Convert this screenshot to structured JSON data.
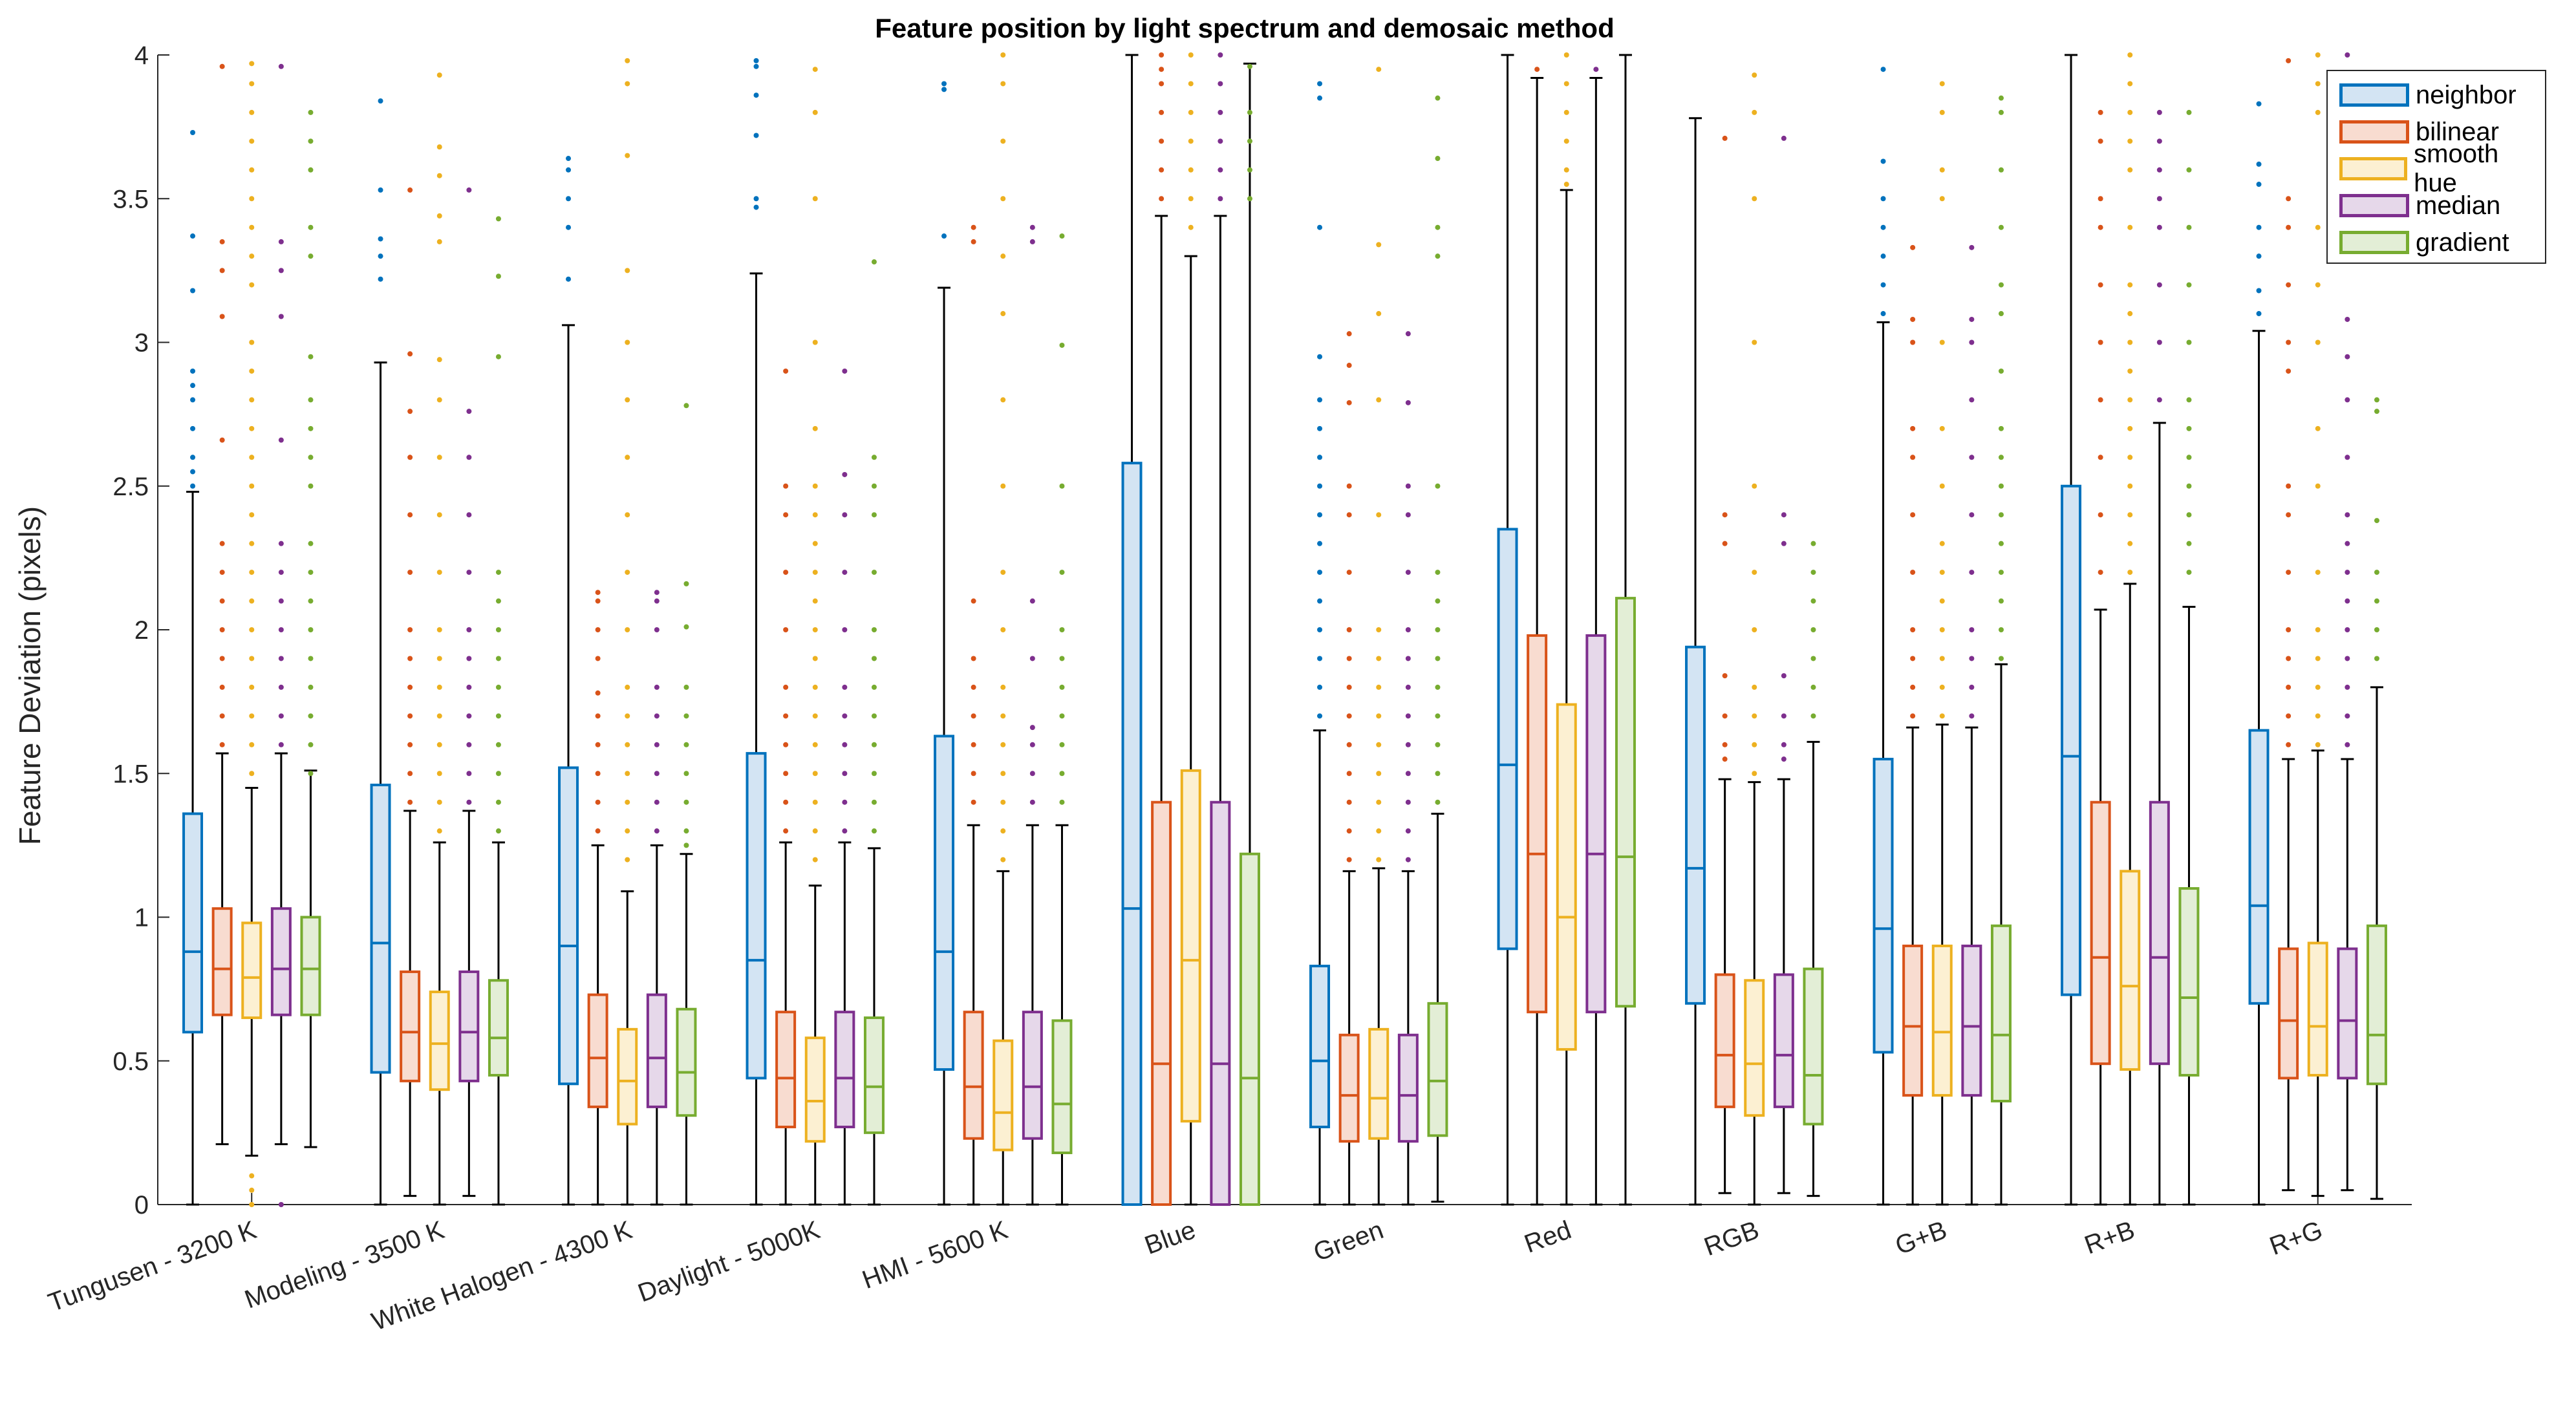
{
  "chart_data": {
    "type": "box",
    "title": "Feature position by light spectrum and demosaic method",
    "xlabel": "",
    "ylabel": "Feature Deviation (pixels)",
    "ylim": [
      0,
      4
    ],
    "yticks": [
      "0",
      "0.5",
      "1",
      "1.5",
      "2",
      "2.5",
      "3",
      "3.5",
      "4"
    ],
    "legend_position": "top-right",
    "categories": [
      "Tungusen - 3200 K",
      "Modeling - 3500 K",
      "White Halogen - 4300 K",
      "Daylight  - 5000K",
      "HMI - 5600 K",
      "Blue",
      "Green",
      "Red",
      "RGB",
      "G+B",
      "R+B",
      "R+G"
    ],
    "series": [
      {
        "name": "neighbor",
        "color": "#0072BD",
        "fill": "#d3e4f3",
        "q1": [
          0.6,
          0.46,
          0.42,
          0.44,
          0.47,
          0,
          0.27,
          0.89,
          0.7,
          0.53,
          0.73,
          0.7
        ],
        "median": [
          0.88,
          0.91,
          0.9,
          0.85,
          0.88,
          1.03,
          0.5,
          1.53,
          1.17,
          0.96,
          1.56,
          1.04
        ],
        "q3": [
          1.36,
          1.46,
          1.52,
          1.57,
          1.63,
          2.58,
          0.83,
          2.35,
          1.94,
          1.55,
          2.5,
          1.65
        ],
        "whisker_low": [
          0,
          0,
          0,
          0,
          0,
          0,
          0,
          0,
          0,
          0,
          0,
          0
        ],
        "whisker_high": [
          2.48,
          2.93,
          3.06,
          3.24,
          3.19,
          4.0,
          1.65,
          4.0,
          3.78,
          3.07,
          4.0,
          3.04
        ],
        "outliers": [
          [
            2.5,
            2.55,
            2.6,
            2.7,
            2.8,
            2.85,
            2.9,
            3.18,
            3.37,
            3.73
          ],
          [
            3.22,
            3.3,
            3.36,
            3.53,
            3.84
          ],
          [
            3.22,
            3.4,
            3.5,
            3.6,
            3.64
          ],
          [
            3.47,
            3.5,
            3.72,
            3.86,
            3.96,
            3.98
          ],
          [
            3.37,
            3.88,
            3.9
          ],
          [],
          [
            1.7,
            1.8,
            1.9,
            2.0,
            2.1,
            2.2,
            2.3,
            2.4,
            2.5,
            2.6,
            2.7,
            2.8,
            2.95,
            3.4,
            3.85,
            3.9
          ],
          [],
          [],
          [
            3.1,
            3.2,
            3.3,
            3.4,
            3.5,
            3.63,
            3.95
          ],
          [],
          [
            3.1,
            3.18,
            3.3,
            3.4,
            3.55,
            3.62,
            3.83
          ]
        ]
      },
      {
        "name": "bilinear",
        "color": "#D95319",
        "fill": "#f8dcd0",
        "q1": [
          0.66,
          0.43,
          0.34,
          0.27,
          0.23,
          0,
          0.22,
          0.67,
          0.34,
          0.38,
          0.49,
          0.44
        ],
        "median": [
          0.82,
          0.6,
          0.51,
          0.44,
          0.41,
          0.49,
          0.38,
          1.22,
          0.52,
          0.62,
          0.86,
          0.64
        ],
        "q3": [
          1.03,
          0.81,
          0.73,
          0.67,
          0.67,
          1.4,
          0.59,
          1.98,
          0.8,
          0.9,
          1.4,
          0.89
        ],
        "whisker_low": [
          0.21,
          0.03,
          0,
          0,
          0,
          0,
          0,
          0,
          0.04,
          0,
          0,
          0.05
        ],
        "whisker_high": [
          1.57,
          1.37,
          1.25,
          1.26,
          1.32,
          3.44,
          1.16,
          3.92,
          1.48,
          1.66,
          2.07,
          1.55
        ],
        "outliers": [
          [
            1.6,
            1.7,
            1.8,
            1.9,
            2.0,
            2.1,
            2.2,
            2.3,
            2.66,
            3.09,
            3.25,
            3.35,
            3.96
          ],
          [
            1.4,
            1.5,
            1.6,
            1.7,
            1.8,
            1.9,
            2.0,
            2.2,
            2.4,
            2.6,
            2.76,
            2.96,
            3.53
          ],
          [
            1.3,
            1.4,
            1.5,
            1.6,
            1.7,
            1.78,
            1.9,
            2.0,
            2.1,
            2.13
          ],
          [
            1.3,
            1.4,
            1.5,
            1.6,
            1.7,
            1.8,
            2.0,
            2.2,
            2.4,
            2.5,
            2.9
          ],
          [
            1.4,
            1.5,
            1.6,
            1.7,
            1.8,
            1.9,
            2.1,
            3.35,
            3.4
          ],
          [
            3.5,
            3.6,
            3.7,
            3.8,
            3.9,
            3.95,
            4.0
          ],
          [
            1.2,
            1.3,
            1.4,
            1.5,
            1.6,
            1.7,
            1.8,
            1.9,
            2.0,
            2.2,
            2.4,
            2.5,
            2.79,
            2.92,
            3.03
          ],
          [
            3.95
          ],
          [
            1.55,
            1.6,
            1.7,
            1.84,
            2.3,
            2.4,
            3.71
          ],
          [
            1.7,
            1.8,
            1.9,
            2.0,
            2.2,
            2.4,
            2.6,
            2.7,
            3.0,
            3.08,
            3.33
          ],
          [
            2.2,
            2.4,
            2.6,
            2.8,
            3.0,
            3.2,
            3.4,
            3.5,
            3.7,
            3.8
          ],
          [
            1.6,
            1.7,
            1.8,
            1.9,
            2.0,
            2.2,
            2.4,
            2.5,
            2.9,
            3.0,
            3.2,
            3.4,
            3.5,
            3.98
          ]
        ]
      },
      {
        "name": "smooth hue",
        "color": "#EDB120",
        "fill": "#fcf0d2",
        "q1": [
          0.65,
          0.4,
          0.28,
          0.22,
          0.19,
          0.29,
          0.23,
          0.54,
          0.31,
          0.38,
          0.47,
          0.45
        ],
        "median": [
          0.79,
          0.56,
          0.43,
          0.36,
          0.32,
          0.85,
          0.37,
          1.0,
          0.49,
          0.6,
          0.76,
          0.62
        ],
        "q3": [
          0.98,
          0.74,
          0.61,
          0.58,
          0.57,
          1.51,
          0.61,
          1.74,
          0.78,
          0.9,
          1.16,
          0.91
        ],
        "whisker_low": [
          0.17,
          0,
          0,
          0,
          0,
          0,
          0,
          0,
          0,
          0,
          0,
          0.03
        ],
        "whisker_high": [
          1.45,
          1.26,
          1.09,
          1.11,
          1.16,
          3.3,
          1.17,
          3.53,
          1.47,
          1.67,
          2.16,
          1.58
        ],
        "outliers": [
          [
            0.0,
            0.05,
            0.1,
            1.5,
            1.6,
            1.7,
            1.8,
            1.9,
            2.0,
            2.1,
            2.2,
            2.3,
            2.4,
            2.5,
            2.6,
            2.7,
            2.8,
            2.9,
            3.0,
            3.2,
            3.3,
            3.4,
            3.5,
            3.6,
            3.7,
            3.8,
            3.9,
            3.97
          ],
          [
            1.3,
            1.4,
            1.5,
            1.6,
            1.7,
            1.8,
            1.9,
            2.0,
            2.2,
            2.4,
            2.6,
            2.8,
            2.94,
            3.35,
            3.44,
            3.58,
            3.68,
            3.93
          ],
          [
            1.2,
            1.3,
            1.4,
            1.5,
            1.6,
            1.7,
            1.8,
            2.0,
            2.2,
            2.4,
            2.6,
            2.8,
            3.0,
            3.25,
            3.65,
            3.9,
            3.98
          ],
          [
            1.2,
            1.3,
            1.4,
            1.5,
            1.6,
            1.7,
            1.8,
            1.9,
            2.0,
            2.1,
            2.2,
            2.3,
            2.4,
            2.5,
            2.7,
            3.0,
            3.5,
            3.8,
            3.95
          ],
          [
            1.2,
            1.3,
            1.4,
            1.5,
            1.6,
            1.7,
            1.8,
            2.0,
            2.2,
            2.5,
            2.8,
            3.1,
            3.3,
            3.5,
            3.7,
            3.9,
            4.0
          ],
          [
            3.4,
            3.5,
            3.6,
            3.7,
            3.8,
            3.9,
            4.0
          ],
          [
            1.2,
            1.3,
            1.4,
            1.5,
            1.6,
            1.7,
            1.8,
            1.9,
            2.0,
            2.4,
            2.8,
            3.1,
            3.34,
            3.95
          ],
          [
            3.55,
            3.6,
            3.7,
            3.8,
            3.9,
            4.0
          ],
          [
            1.5,
            1.6,
            1.7,
            1.8,
            2.0,
            2.2,
            2.5,
            3.0,
            3.5,
            3.8,
            3.93
          ],
          [
            1.7,
            1.8,
            1.9,
            2.0,
            2.1,
            2.2,
            2.3,
            2.5,
            2.7,
            3.0,
            3.5,
            3.6,
            3.8,
            3.9
          ],
          [
            2.2,
            2.3,
            2.4,
            2.5,
            2.6,
            2.7,
            2.8,
            2.9,
            3.0,
            3.1,
            3.2,
            3.4,
            3.6,
            3.7,
            3.8,
            3.9,
            4.0
          ],
          [
            1.6,
            1.7,
            1.8,
            1.9,
            2.0,
            2.2,
            2.5,
            2.7,
            3.0,
            3.2,
            3.4,
            3.8,
            3.9,
            4.0
          ]
        ]
      },
      {
        "name": "median",
        "color": "#7E2F8E",
        "fill": "#e6d8ea",
        "q1": [
          0.66,
          0.43,
          0.34,
          0.27,
          0.23,
          0,
          0.22,
          0.67,
          0.34,
          0.38,
          0.49,
          0.44
        ],
        "median": [
          0.82,
          0.6,
          0.51,
          0.44,
          0.41,
          0.49,
          0.38,
          1.22,
          0.52,
          0.62,
          0.86,
          0.64
        ],
        "q3": [
          1.03,
          0.81,
          0.73,
          0.67,
          0.67,
          1.4,
          0.59,
          1.98,
          0.8,
          0.9,
          1.4,
          0.89
        ],
        "whisker_low": [
          0.21,
          0.03,
          0,
          0,
          0,
          0,
          0,
          0,
          0.04,
          0,
          0,
          0.05
        ],
        "whisker_high": [
          1.57,
          1.37,
          1.25,
          1.26,
          1.32,
          3.44,
          1.16,
          3.92,
          1.48,
          1.66,
          2.72,
          1.55
        ],
        "outliers": [
          [
            0.0,
            1.6,
            1.7,
            1.8,
            1.9,
            2.0,
            2.1,
            2.2,
            2.3,
            2.66,
            3.09,
            3.25,
            3.35,
            3.96
          ],
          [
            1.4,
            1.5,
            1.6,
            1.7,
            1.8,
            1.9,
            2.0,
            2.2,
            2.4,
            2.6,
            2.76,
            3.53
          ],
          [
            1.3,
            1.4,
            1.5,
            1.6,
            1.7,
            1.8,
            2.0,
            2.1,
            2.13
          ],
          [
            1.3,
            1.4,
            1.5,
            1.6,
            1.7,
            1.8,
            2.0,
            2.2,
            2.4,
            2.54,
            2.9
          ],
          [
            1.4,
            1.5,
            1.6,
            1.66,
            1.9,
            2.1,
            3.35,
            3.4
          ],
          [
            3.5,
            3.6,
            3.7,
            3.8,
            3.9,
            4.0
          ],
          [
            1.2,
            1.3,
            1.4,
            1.5,
            1.6,
            1.7,
            1.8,
            1.9,
            2.0,
            2.2,
            2.4,
            2.5,
            2.79,
            3.03
          ],
          [
            3.95
          ],
          [
            1.55,
            1.6,
            1.7,
            1.84,
            2.3,
            2.4,
            3.71
          ],
          [
            1.7,
            1.8,
            1.9,
            2.0,
            2.2,
            2.4,
            2.6,
            2.8,
            3.0,
            3.08,
            3.33
          ],
          [
            2.8,
            3.0,
            3.2,
            3.4,
            3.5,
            3.6,
            3.7,
            3.8
          ],
          [
            1.6,
            1.7,
            1.8,
            1.9,
            2.0,
            2.1,
            2.2,
            2.3,
            2.4,
            2.6,
            2.8,
            2.95,
            3.08,
            3.4,
            4.0
          ]
        ]
      },
      {
        "name": "gradient",
        "color": "#77AC30",
        "fill": "#e3eed6",
        "q1": [
          0.66,
          0.45,
          0.31,
          0.25,
          0.18,
          0,
          0.24,
          0.69,
          0.28,
          0.36,
          0.45,
          0.42
        ],
        "median": [
          0.82,
          0.58,
          0.46,
          0.41,
          0.35,
          0.44,
          0.43,
          1.21,
          0.45,
          0.59,
          0.72,
          0.59
        ],
        "q3": [
          1.0,
          0.78,
          0.68,
          0.65,
          0.64,
          1.22,
          0.7,
          2.11,
          0.82,
          0.97,
          1.1,
          0.97
        ],
        "whisker_low": [
          0.2,
          0,
          0,
          0,
          0,
          0,
          0.01,
          0,
          0.03,
          0,
          0,
          0.02
        ],
        "whisker_high": [
          1.51,
          1.26,
          1.22,
          1.24,
          1.32,
          3.97,
          1.36,
          4.0,
          1.61,
          1.88,
          2.08,
          1.8
        ],
        "outliers": [
          [
            1.5,
            1.6,
            1.7,
            1.8,
            1.9,
            2.0,
            2.1,
            2.2,
            2.3,
            2.5,
            2.6,
            2.7,
            2.8,
            2.95,
            3.3,
            3.4,
            3.6,
            3.7,
            3.8
          ],
          [
            1.3,
            1.4,
            1.5,
            1.6,
            1.7,
            1.8,
            1.9,
            2.0,
            2.1,
            2.2,
            2.95,
            3.23,
            3.43
          ],
          [
            1.25,
            1.3,
            1.4,
            1.5,
            1.6,
            1.7,
            1.8,
            2.01,
            2.16,
            2.78
          ],
          [
            1.3,
            1.4,
            1.5,
            1.6,
            1.7,
            1.8,
            1.9,
            2.0,
            2.2,
            2.4,
            2.5,
            2.6,
            3.28
          ],
          [
            1.4,
            1.5,
            1.6,
            1.7,
            1.8,
            1.9,
            2.0,
            2.2,
            2.5,
            2.99,
            3.37
          ],
          [
            3.5,
            3.6,
            3.7,
            3.8,
            3.96
          ],
          [
            1.4,
            1.5,
            1.6,
            1.7,
            1.8,
            1.9,
            2.0,
            2.1,
            2.2,
            2.5,
            3.3,
            3.4,
            3.64,
            3.85
          ],
          [],
          [
            1.7,
            1.8,
            1.9,
            2.0,
            2.1,
            2.2,
            2.3
          ],
          [
            1.9,
            2.0,
            2.1,
            2.2,
            2.3,
            2.4,
            2.5,
            2.6,
            2.7,
            2.9,
            3.1,
            3.2,
            3.4,
            3.6,
            3.8,
            3.85
          ],
          [
            2.2,
            2.3,
            2.4,
            2.5,
            2.6,
            2.7,
            2.8,
            3.0,
            3.2,
            3.4,
            3.6,
            3.8
          ],
          [
            1.9,
            2.0,
            2.1,
            2.2,
            2.38,
            2.76,
            2.8
          ]
        ]
      }
    ]
  }
}
